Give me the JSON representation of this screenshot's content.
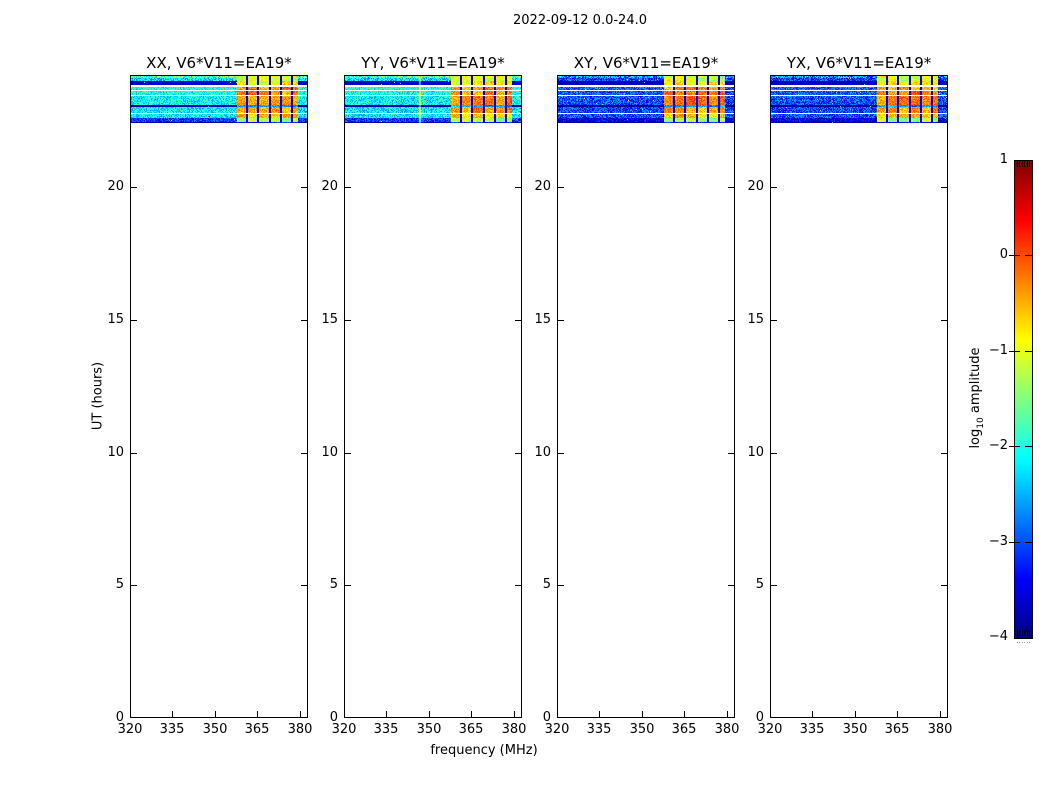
{
  "figure_title": "2022-09-12 0.0-24.0",
  "axes": {
    "xlabel": "frequency (MHz)",
    "ylabel": "UT (hours)",
    "x_tick_labels": [
      "320",
      "335",
      "350",
      "365",
      "380"
    ],
    "y_tick_labels": [
      "0",
      "5",
      "10",
      "15",
      "20"
    ]
  },
  "colorbar_ui": {
    "axis_label_log": "log",
    "axis_label_sub": "10",
    "axis_label_rest": " amplitude",
    "tick_labels": [
      "1",
      "0",
      "−1",
      "−2",
      "−3",
      "−4"
    ]
  },
  "chart_data": {
    "type": "heatmap",
    "subtype": "dynamic-spectrum-waterfall",
    "title": "2022-09-12 0.0-24.0",
    "xlabel": "frequency (MHz)",
    "ylabel": "UT (hours)",
    "x_range_mhz": [
      320,
      383
    ],
    "x_ticks_mhz": [
      320,
      335,
      350,
      365,
      380
    ],
    "y_range_hours": [
      0,
      24.2
    ],
    "y_ticks_hours": [
      0,
      5,
      10,
      15,
      20
    ],
    "data_present_hours": [
      22.4,
      24.2
    ],
    "colorbar": {
      "label": "log10 amplitude",
      "range": [
        -4,
        1
      ],
      "ticks": [
        1,
        0,
        -1,
        -2,
        -3,
        -4
      ],
      "colormap": "jet"
    },
    "panels": [
      {
        "label": "XX, V6*V11=EA19*",
        "polarization": "XX",
        "group": "parallel",
        "background_log10": -2.2,
        "rfi_lines": []
      },
      {
        "label": "YY, V6*V11=EA19*",
        "polarization": "YY",
        "group": "parallel",
        "background_log10": -2.2,
        "rfi_lines": [
          0.425
        ]
      },
      {
        "label": "XY, V6*V11=EA19*",
        "polarization": "XY",
        "group": "cross",
        "background_log10": -3.0,
        "rfi_lines": []
      },
      {
        "label": "YX, V6*V11=EA19*",
        "polarization": "YX",
        "group": "cross",
        "background_log10": -3.0,
        "rfi_lines": []
      }
    ],
    "hot_region": {
      "x0": 0.6,
      "x1": 0.945,
      "freq_range_mhz": [
        358,
        379.5
      ],
      "dividers": [
        0.655,
        0.72,
        0.785,
        0.85,
        0.912
      ],
      "peak_log10": 0.3
    },
    "band_rows": [
      {
        "h": 2,
        "c": -1.7,
        "x": -2.7,
        "n": 0.8,
        "hot": -1.0
      },
      {
        "h": 3,
        "c": -2.3,
        "x": -3.1,
        "n": 0.6,
        "hot": -1.1
      },
      {
        "h": 4,
        "c": -3.6,
        "x": -3.7,
        "n": 0.25,
        "hot": -0.9
      },
      {
        "h": 2,
        "white": true
      },
      {
        "h": 3,
        "c": -2.0,
        "x": -2.9,
        "n": 0.45,
        "hot": -0.35
      },
      {
        "h": 1,
        "white": true
      },
      {
        "h": 4,
        "c": -2.05,
        "x": -2.95,
        "n": 0.45,
        "hot": -0.3
      },
      {
        "h": 1,
        "white": true
      },
      {
        "h": 9,
        "c": -2.15,
        "x": -3.0,
        "n": 0.5,
        "hot": -0.25
      },
      {
        "h": 2,
        "c": -3.8,
        "x": -3.85,
        "n": 0.15,
        "hot": -2.6
      },
      {
        "h": 6,
        "c": -2.25,
        "x": -3.05,
        "n": 0.5,
        "hot": -0.4
      },
      {
        "h": 1,
        "white": true
      },
      {
        "h": 4,
        "c": -2.2,
        "x": -3.0,
        "n": 0.5,
        "hot": -0.6
      },
      {
        "h": 4,
        "c": -3.1,
        "x": -3.5,
        "n": 0.4,
        "hot": -1.3
      },
      {
        "h": 1,
        "c": -3.8,
        "x": -3.85,
        "n": 0.1,
        "hot": -3.3
      }
    ]
  }
}
